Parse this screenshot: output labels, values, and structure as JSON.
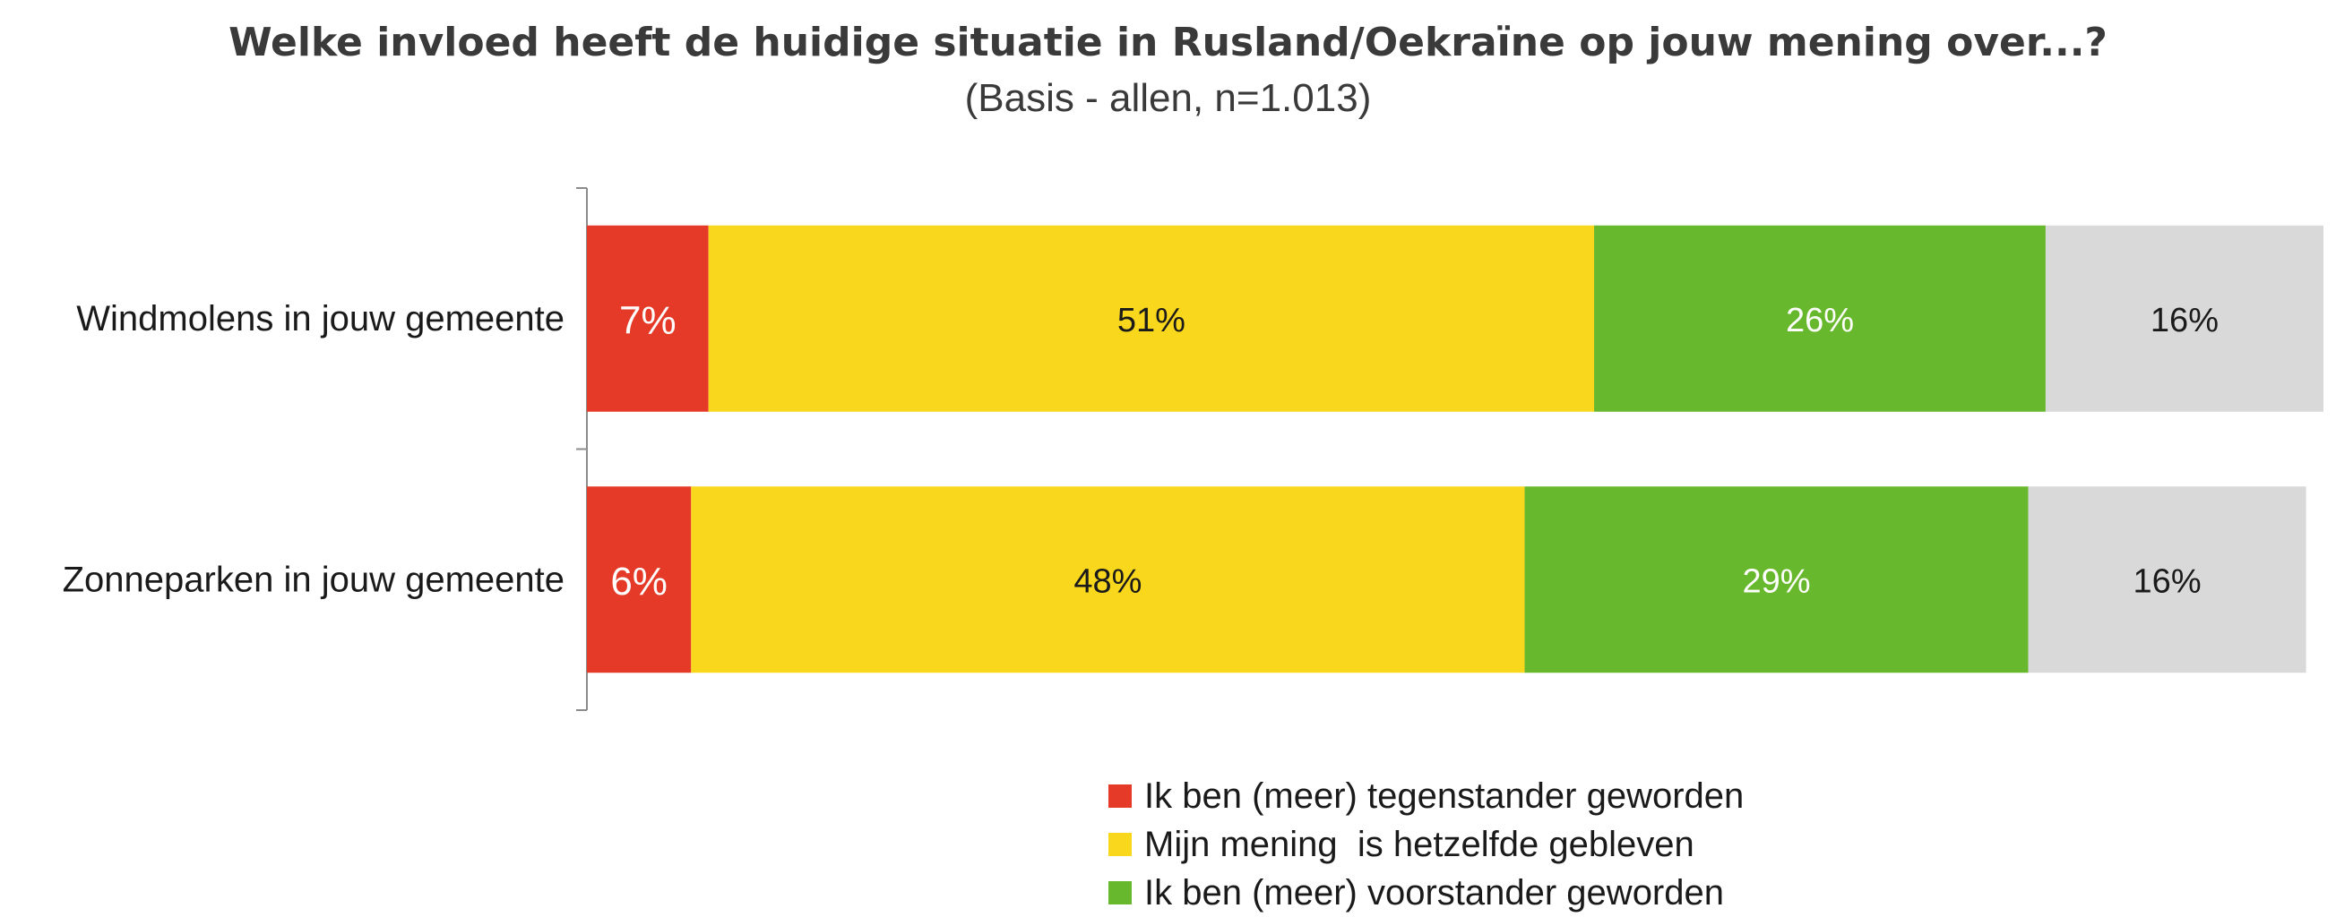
{
  "title": "Welke invloed heeft de huidige situatie in Rusland/Oekraïne op jouw mening over...?",
  "subtitle": "(Basis - allen, n=1.013)",
  "colors": {
    "tegenstander": "#e53a27",
    "hetzelfde": "#f9d71c",
    "voorstander": "#67b82c",
    "overig": "#d9d9d9"
  },
  "chart_data": {
    "type": "bar",
    "orientation": "horizontal",
    "stacked": true,
    "percent_stacked": true,
    "title": "Welke invloed heeft de huidige situatie in Rusland/Oekraïne op jouw mening over...?",
    "subtitle": "(Basis - allen, n=1.013)",
    "categories": [
      "Windmolens in jouw gemeente",
      "Zonneparken in jouw gemeente"
    ],
    "series": [
      {
        "name": "Ik ben (meer) tegenstander geworden",
        "key": "tegenstander",
        "values": [
          7,
          6
        ],
        "labels": [
          "7%",
          "6%"
        ],
        "label_color": "#ffffff"
      },
      {
        "name": "Mijn mening  is hetzelfde gebleven",
        "key": "hetzelfde",
        "values": [
          51,
          48
        ],
        "labels": [
          "51%",
          "48%"
        ],
        "label_color": "#1a1a1a"
      },
      {
        "name": "Ik ben (meer) voorstander geworden",
        "key": "voorstander",
        "values": [
          26,
          29
        ],
        "labels": [
          "26%",
          "29%"
        ],
        "label_color": "#ffffff"
      },
      {
        "name": "",
        "key": "overig",
        "values": [
          16,
          16
        ],
        "labels": [
          "16%",
          "16%"
        ],
        "label_color": "#1a1a1a"
      }
    ],
    "xlim": [
      0,
      100
    ],
    "grid": false,
    "legend_position": "bottom"
  }
}
